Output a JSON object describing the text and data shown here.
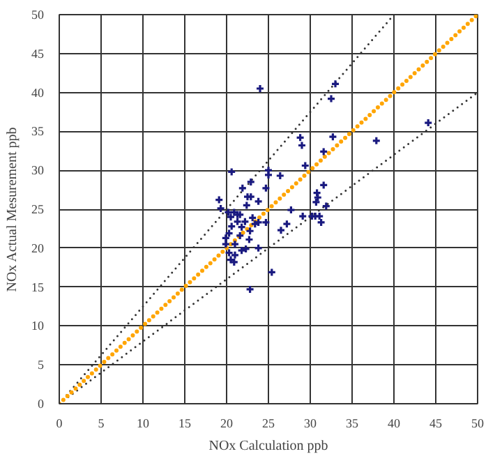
{
  "chart_data": {
    "type": "scatter",
    "xlabel": "NOx Calculation ppb",
    "ylabel": "NOx Actual Mesurement ppb",
    "xlim": [
      0,
      50
    ],
    "ylim": [
      0,
      50
    ],
    "xticks": [
      0,
      5,
      10,
      15,
      20,
      25,
      30,
      35,
      40,
      45,
      50
    ],
    "yticks": [
      0,
      5,
      10,
      15,
      20,
      25,
      30,
      35,
      40,
      45,
      50
    ],
    "grid": true,
    "marker": "cross",
    "series": [
      {
        "type": "line",
        "color": "#333333",
        "line_style": "dotted",
        "marker": "none",
        "x": [
          0,
          40
        ],
        "values": [
          0,
          50
        ]
      },
      {
        "type": "line",
        "color": "#333333",
        "line_style": "dotted",
        "marker": "none",
        "x": [
          0,
          50
        ],
        "values": [
          0,
          40
        ]
      },
      {
        "type": "line",
        "color": "#ffa500",
        "line_style": "dotted",
        "marker": "none",
        "x": [
          0,
          50
        ],
        "values": [
          0,
          50
        ]
      },
      {
        "color": "#1a1a80",
        "x": [
          24.0,
          33.0,
          32.5,
          44.1,
          37.9,
          32.7,
          28.8,
          29.0,
          31.6,
          29.4,
          20.6,
          25.0,
          25.0,
          26.4,
          24.7,
          31.6,
          22.9,
          21.9,
          19.1,
          19.3,
          22.5,
          22.9,
          22.4,
          23.8,
          27.7,
          30.8,
          30.9,
          30.7,
          30.2,
          30.6,
          31.1,
          29.1,
          31.9,
          31.3,
          27.2,
          26.5,
          20.2,
          20.9,
          21.3,
          21.6,
          20.5,
          21.3,
          20.6,
          21.8,
          22.2,
          23.1,
          23.4,
          23.8,
          24.7,
          20.3,
          19.9,
          21.6,
          22.8,
          22.7,
          19.9,
          21.0,
          21.8,
          22.3,
          23.8,
          20.3,
          21.0,
          20.5,
          20.9,
          25.4,
          22.8
        ],
        "values": [
          40.5,
          41.1,
          39.2,
          36.1,
          33.8,
          34.3,
          34.2,
          33.2,
          32.4,
          30.6,
          29.8,
          30.0,
          29.4,
          29.3,
          27.7,
          28.1,
          28.5,
          27.7,
          26.2,
          25.1,
          26.6,
          26.6,
          25.5,
          26.0,
          24.9,
          27.1,
          26.5,
          25.9,
          24.1,
          24.1,
          24.1,
          24.1,
          25.4,
          23.3,
          23.1,
          22.3,
          24.6,
          24.6,
          24.3,
          24.3,
          24.0,
          23.4,
          22.8,
          22.7,
          23.4,
          23.9,
          23.1,
          23.3,
          23.3,
          21.9,
          21.3,
          21.6,
          22.2,
          21.1,
          20.5,
          20.5,
          19.7,
          19.9,
          20.0,
          19.4,
          19.1,
          18.5,
          18.2,
          16.9,
          14.7
        ]
      }
    ]
  }
}
